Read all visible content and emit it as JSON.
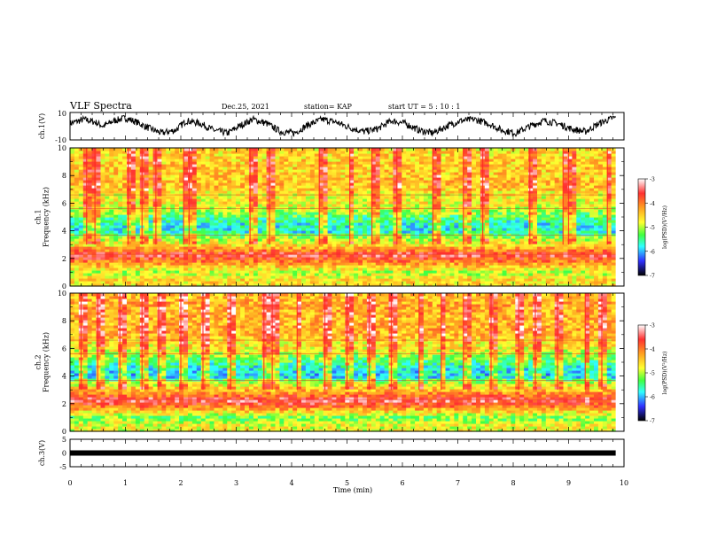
{
  "header": {
    "title": "VLF Spectra",
    "date": "Dec.25, 2021",
    "station": "station= KAP",
    "start": "start  UT =  5 : 10 : 1"
  },
  "colorbar": {
    "label": "log(PSD)(V²/Hz)",
    "ticks": [
      -3,
      -4,
      -5,
      -6,
      -7
    ],
    "range": [
      -7,
      -3
    ],
    "colors": [
      "#ffffff",
      "#ff3030",
      "#ffa020",
      "#ffff30",
      "#40ff40",
      "#30ffff",
      "#3030ff",
      "#000000"
    ]
  },
  "chart_data": [
    {
      "type": "line",
      "panel": "ch1-waveform",
      "ylabel": "ch.1(V)",
      "ylim": [
        -10,
        10
      ],
      "ytick_labels": [
        "10",
        "-10"
      ],
      "xlim": [
        0,
        10
      ],
      "series": [
        {
          "x": [
            0,
            0.25,
            0.45,
            0.6,
            0.8,
            1.0,
            1.2,
            1.4,
            1.65,
            1.9,
            2.1,
            2.35,
            2.6,
            2.85,
            3.05,
            3.3,
            3.55,
            3.8,
            4.05,
            4.3,
            4.55,
            4.8,
            5.05,
            5.3,
            5.55,
            5.8,
            6.05,
            6.3,
            6.55,
            6.8,
            7.05,
            7.3,
            7.55,
            7.8,
            8.05,
            8.3,
            8.55,
            8.8,
            9.05,
            9.3,
            9.55,
            9.8
          ],
          "values": [
            2,
            5,
            3,
            0,
            4,
            6,
            3,
            -1,
            -5,
            -3,
            4,
            2,
            -3,
            -5,
            0,
            5,
            2,
            -4,
            -5,
            1,
            5,
            3,
            -1,
            -4,
            -2,
            4,
            2,
            -3,
            -5,
            0,
            4,
            5,
            2,
            -3,
            -5,
            0,
            4,
            2,
            -2,
            -4,
            2,
            6
          ]
        }
      ]
    },
    {
      "type": "heatmap",
      "panel": "ch1-spectrogram",
      "ylabel": "ch.1\nFrequency  (kHz)",
      "ylim": [
        0,
        10
      ],
      "yticks": [
        0,
        2,
        4,
        6,
        8,
        10
      ],
      "xlim": [
        0,
        10
      ],
      "value_range": [
        -7,
        -3
      ],
      "frequency_profile_khz": [
        0.5,
        1.0,
        1.5,
        2.0,
        2.3,
        2.6,
        3.0,
        3.5,
        4.0,
        4.5,
        5.0,
        5.5,
        6.0,
        6.5,
        7.0,
        7.5,
        8.0,
        9.0,
        10.0
      ],
      "log_psd_profile": [
        -4.6,
        -5.0,
        -4.4,
        -3.8,
        -3.5,
        -4.0,
        -4.6,
        -5.0,
        -5.8,
        -5.7,
        -5.4,
        -5.0,
        -4.7,
        -4.8,
        -4.5,
        -4.4,
        -4.5,
        -4.5,
        -4.6
      ],
      "vertical_bursts_min": [
        0.3,
        0.45,
        1.05,
        1.3,
        1.55,
        2.05,
        2.15,
        3.25,
        3.6,
        4.5,
        5.05,
        5.45,
        5.9,
        6.55,
        7.1,
        7.45,
        8.3,
        8.9,
        9.0,
        9.7
      ]
    },
    {
      "type": "heatmap",
      "panel": "ch2-spectrogram",
      "ylabel": "ch.2\nFrequency  (kHz)",
      "ylim": [
        0,
        10
      ],
      "yticks": [
        0,
        2,
        4,
        6,
        8,
        10
      ],
      "xlim": [
        0,
        10
      ],
      "value_range": [
        -7,
        -3
      ],
      "frequency_profile_khz": [
        0.5,
        1.0,
        1.5,
        2.0,
        2.3,
        2.6,
        3.0,
        3.5,
        4.0,
        4.5,
        5.0,
        5.5,
        6.0,
        6.5,
        7.0,
        7.5,
        8.0,
        9.0,
        10.0
      ],
      "log_psd_profile": [
        -4.8,
        -5.2,
        -4.5,
        -3.7,
        -3.4,
        -3.9,
        -4.4,
        -4.9,
        -5.9,
        -5.8,
        -5.5,
        -5.1,
        -4.7,
        -4.6,
        -4.4,
        -4.3,
        -4.4,
        -4.3,
        -4.4
      ],
      "vertical_bursts_min": [
        0.2,
        0.5,
        0.9,
        1.3,
        1.6,
        2.0,
        2.4,
        2.9,
        3.5,
        3.65,
        4.1,
        4.6,
        5.0,
        5.4,
        5.8,
        6.3,
        6.7,
        7.1,
        7.6,
        8.1,
        8.4,
        8.8,
        9.3,
        9.6
      ]
    },
    {
      "type": "line",
      "panel": "ch3-waveform",
      "ylabel": "ch.3(V)",
      "ylim": [
        -5,
        5
      ],
      "yticks": [
        5,
        0,
        -5
      ],
      "xlim": [
        0,
        10
      ],
      "series": [
        {
          "x": [
            0,
            9.85
          ],
          "values": [
            0,
            0
          ]
        }
      ]
    }
  ],
  "xaxis": {
    "label": "Time  (min)",
    "ticks": [
      0,
      1,
      2,
      3,
      4,
      5,
      6,
      7,
      8,
      9,
      10
    ]
  }
}
